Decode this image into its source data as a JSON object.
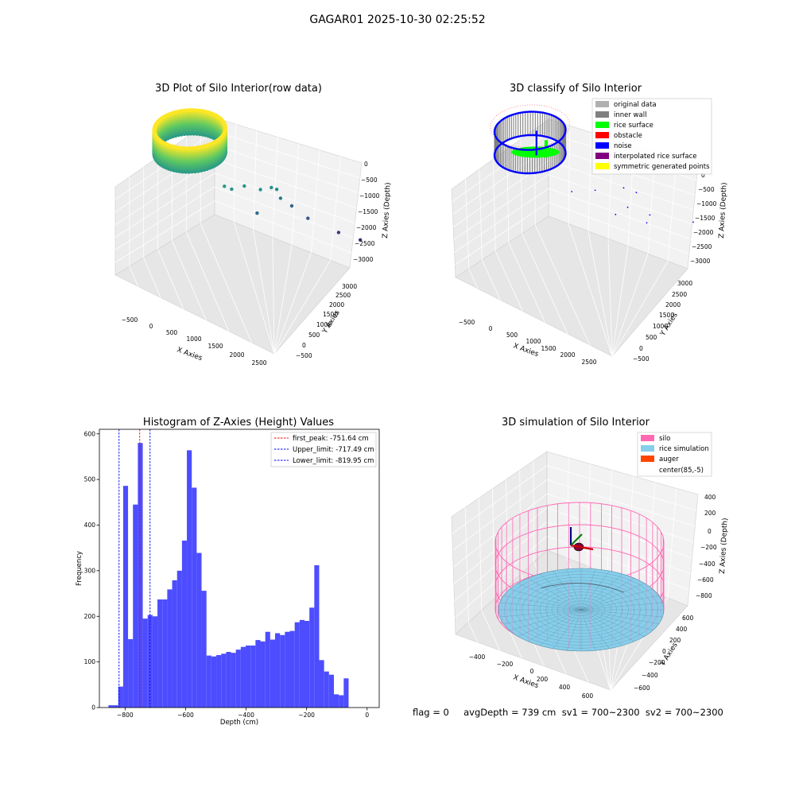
{
  "suptitle": "GAGAR01 2025-10-30 02:25:52",
  "status_text": "flag = 0     avgDepth = 739 cm  sv1 = 700~2300  sv2 = 700~2300",
  "colors": {
    "grey_data": "#b0b0b0",
    "inner_wall": "#808080",
    "rice_surface": "#00ff00",
    "obstacle": "#ff0000",
    "noise": "#0000ff",
    "interp": "#800080",
    "symmetric": "#ffff00",
    "hist_bar": "#4d4dff",
    "silo": "#ff69b4",
    "rice_sim": "#87ceeb",
    "auger": "#ff4500"
  },
  "chart_data": [
    {
      "type": "scatter",
      "title": "3D Plot of Silo Interior(row data)",
      "xlabel": "X Axies",
      "ylabel": "Y Axies",
      "zlabel": "Z Axies (Depth)",
      "x_ticks": [
        "−500",
        "0",
        "500",
        "1000",
        "1500",
        "2000",
        "2500"
      ],
      "y_ticks": [
        "−500",
        "0",
        "500",
        "1000",
        "1500",
        "2000",
        "2500",
        "3000"
      ],
      "z_ticks": [
        "0",
        "−500",
        "−1000",
        "−1500",
        "−2000",
        "−2500",
        "−3000"
      ],
      "xlim": [
        -700,
        2700
      ],
      "ylim": [
        -700,
        3300
      ],
      "zlim": [
        -3300,
        100
      ],
      "colormap": "viridis",
      "cylinder": {
        "center": [
          85,
          -5
        ],
        "radius": 700,
        "z_top": -600,
        "z_bottom": -1000
      },
      "scattered_points": [
        [
          700,
          350,
          -1500
        ],
        [
          800,
          450,
          -1550
        ],
        [
          900,
          700,
          -1550
        ],
        [
          1150,
          900,
          -1600
        ],
        [
          1250,
          1100,
          -1600
        ],
        [
          1300,
          1200,
          -1650
        ],
        [
          1200,
          1400,
          -1900
        ],
        [
          950,
          1000,
          -2100
        ],
        [
          1100,
          1800,
          -2200
        ],
        [
          1350,
          2000,
          -2400
        ],
        [
          1700,
          2500,
          -2700
        ],
        [
          1900,
          2900,
          -2900
        ]
      ]
    },
    {
      "type": "scatter",
      "title": "3D classify of Silo Interior",
      "xlabel": "X Axies",
      "ylabel": "Y Axies",
      "zlabel": "Z Axies (Depth)",
      "x_ticks": [
        "−500",
        "0",
        "500",
        "1000",
        "1500",
        "2000",
        "2500"
      ],
      "y_ticks": [
        "−500",
        "0",
        "500",
        "1000",
        "1500",
        "2000",
        "2500",
        "3000"
      ],
      "z_ticks": [
        "0",
        "−500",
        "−1000",
        "−1500",
        "−2000",
        "−2500",
        "−3000"
      ],
      "xlim": [
        -700,
        2700
      ],
      "ylim": [
        -700,
        3300
      ],
      "zlim": [
        -3300,
        100
      ],
      "legend_position": "upper-right",
      "legend": [
        "original data",
        "inner wall",
        "rice surface",
        "obstacle",
        "noise",
        "interpolated rice surface",
        "symmetric generated points"
      ],
      "cylinder": {
        "center": [
          85,
          -5
        ],
        "radius": 700,
        "z_top": -600,
        "z_bottom": -1000
      },
      "noise_points": [
        [
          900,
          350,
          -1500
        ],
        [
          1200,
          700,
          -1500
        ],
        [
          1700,
          1000,
          -1400
        ],
        [
          1850,
          1200,
          -1500
        ],
        [
          1500,
          1300,
          -1900
        ],
        [
          1050,
          1400,
          -2200
        ],
        [
          1400,
          2000,
          -2300
        ],
        [
          1900,
          2700,
          -2500
        ],
        [
          1100,
          2200,
          -2600
        ]
      ]
    },
    {
      "type": "bar",
      "title": "Histogram of Z-Axies (Height) Values",
      "xlabel": "Depth (cm)",
      "ylabel": "Frequency",
      "xlim": [
        -885,
        40
      ],
      "ylim": [
        0,
        610
      ],
      "x_ticks": [
        -800,
        -600,
        -400,
        -200,
        0
      ],
      "x_tick_labels": [
        "−800",
        "−600",
        "−400",
        "−200",
        "0"
      ],
      "y_ticks": [
        0,
        100,
        200,
        300,
        400,
        500,
        600
      ],
      "bin_start": -855,
      "bin_width": 16.2,
      "values": [
        5,
        5,
        46,
        486,
        150,
        445,
        580,
        195,
        203,
        200,
        237,
        237,
        259,
        279,
        300,
        366,
        564,
        482,
        339,
        256,
        114,
        112,
        115,
        118,
        122,
        120,
        127,
        133,
        136,
        136,
        148,
        145,
        166,
        149,
        163,
        159,
        166,
        168,
        187,
        192,
        190,
        219,
        312,
        104,
        79,
        72,
        29,
        27,
        64
      ],
      "vlines": [
        {
          "label": "first_peak: -751.64 cm",
          "x": -751.64,
          "color": "#ff0000"
        },
        {
          "label": "Upper_limit: -717.49 cm",
          "x": -717.49,
          "color": "#0000ff"
        },
        {
          "label": "Lower_limit: -819.95 cm",
          "x": -819.95,
          "color": "#0000ff"
        }
      ],
      "legend_position": "upper-right"
    },
    {
      "type": "surface",
      "title": "3D simulation of Silo Interior",
      "xlabel": "X Axies",
      "ylabel": "Y Axies",
      "zlabel": "Z Axies (Depth)",
      "x_ticks": [
        "−400",
        "−200",
        "0",
        "200",
        "400",
        "600"
      ],
      "y_ticks": [
        "−600",
        "−400",
        "−200",
        "0",
        "200",
        "400",
        "600"
      ],
      "z_ticks": [
        "400",
        "200",
        "0",
        "−200",
        "−400",
        "−600",
        "−800"
      ],
      "xlim": [
        -600,
        700
      ],
      "ylim": [
        -700,
        700
      ],
      "zlim": [
        -900,
        450
      ],
      "legend_position": "upper-right",
      "legend": [
        "silo",
        "rice simulation",
        "auger",
        "center(85,-5)"
      ],
      "silo_radius": 650,
      "silo_z_top": 0,
      "silo_z_bottom": -750,
      "rice_z": -650
    }
  ]
}
